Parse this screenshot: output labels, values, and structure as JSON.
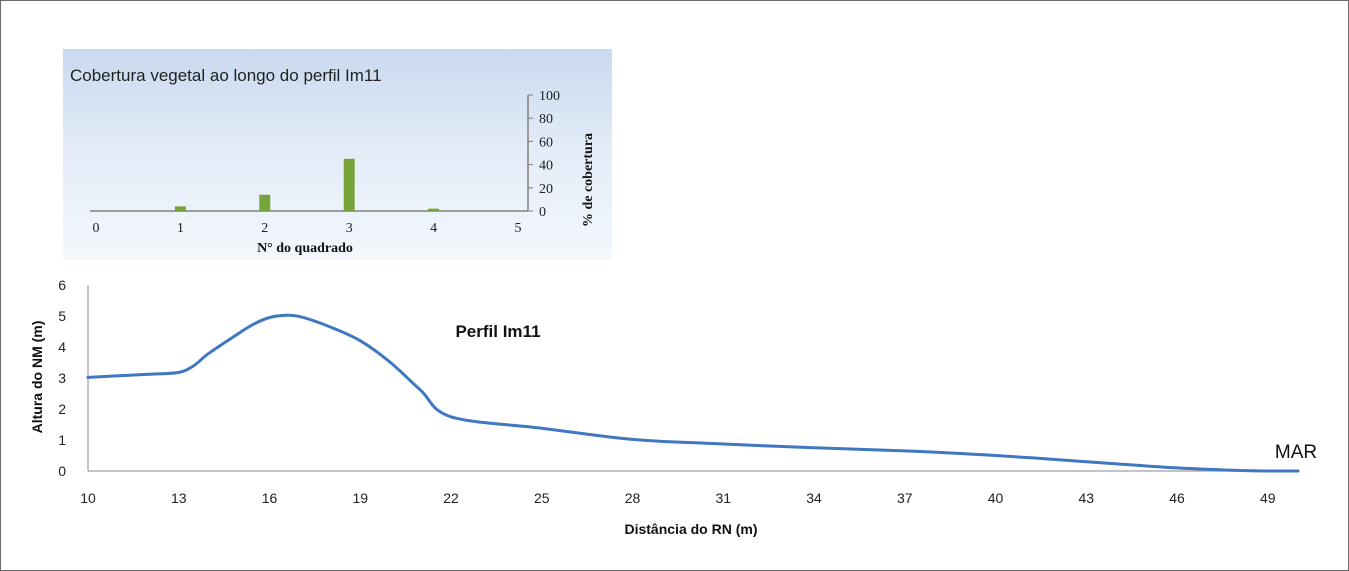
{
  "chart_data": [
    {
      "type": "bar",
      "title": "Cobertura vegetal ao longo do perfil Im11",
      "xlabel": "N° do quadrado",
      "ylabel": "% de cobertura",
      "xticks": [
        "0",
        "1",
        "2",
        "3",
        "4",
        "5"
      ],
      "yticks": [
        "0",
        "20",
        "40",
        "60",
        "80",
        "100"
      ],
      "categories": [
        1,
        2,
        3,
        4
      ],
      "values": [
        4,
        14,
        45,
        2
      ],
      "xlim": [
        0,
        5
      ],
      "ylim": [
        0,
        100
      ],
      "yaxis_side": "right",
      "grid": false,
      "colors": {
        "bar": "#77a33a",
        "axis": "#808080",
        "background_top": "#c9d9ef",
        "background_bottom": "#f4f8fd"
      }
    },
    {
      "type": "line",
      "title": "",
      "annotations": [
        "Perfil Im11",
        "MAR"
      ],
      "xlabel": "Distância do RN (m)",
      "ylabel": "Altura do NM (m)",
      "xticks": [
        "10",
        "13",
        "16",
        "19",
        "22",
        "25",
        "28",
        "31",
        "34",
        "37",
        "40",
        "43",
        "46",
        "49"
      ],
      "yticks": [
        "0",
        "1",
        "2",
        "3",
        "4",
        "5",
        "6"
      ],
      "xlim": [
        10,
        50
      ],
      "ylim": [
        0,
        6
      ],
      "grid": false,
      "series": [
        {
          "x": [
            10,
            11,
            12,
            13,
            13.5,
            14,
            15,
            15.5,
            16,
            16.5,
            17,
            18,
            19,
            20,
            21,
            22,
            25,
            28,
            31,
            34,
            37,
            40,
            43,
            46,
            48,
            49,
            50
          ],
          "y": [
            3.02,
            3.07,
            3.12,
            3.18,
            3.4,
            3.8,
            4.45,
            4.75,
            4.95,
            5.02,
            4.98,
            4.65,
            4.2,
            3.5,
            2.6,
            1.75,
            1.38,
            1.02,
            0.87,
            0.75,
            0.65,
            0.5,
            0.3,
            0.1,
            0.02,
            0.0,
            0.0
          ],
          "color": "#3f78c0"
        }
      ],
      "colors": {
        "axis": "#a0a0a0",
        "line": "#3f78c0"
      }
    }
  ]
}
